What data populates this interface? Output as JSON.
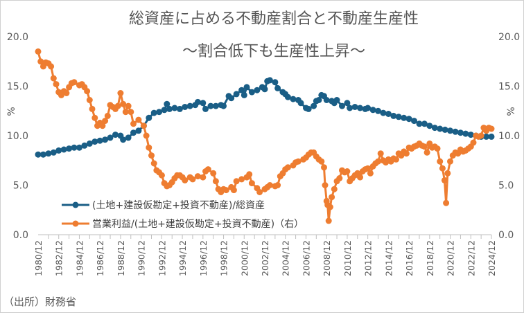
{
  "chart_data": {
    "type": "line",
    "title": "総資産に占める不動産割合と不動産生産性",
    "subtitle": "～割合低下も生産性上昇～",
    "ylabel_left": "%",
    "ylabel_right": "%",
    "ylim": [
      0,
      20
    ],
    "y2lim": [
      0,
      20
    ],
    "yticks": [
      "0.0",
      "5.0",
      "10.0",
      "15.0",
      "20.0"
    ],
    "xticks": [
      "1980/12",
      "1982/12",
      "1984/12",
      "1986/12",
      "1988/12",
      "1990/12",
      "1992/12",
      "1994/12",
      "1996/12",
      "1998/12",
      "2000/12",
      "2002/12",
      "2004/12",
      "2006/12",
      "2008/12",
      "2010/12",
      "2012/12",
      "2014/12",
      "2016/12",
      "2018/12",
      "2020/12",
      "2022/12",
      "2024/12"
    ],
    "x_start": 1980.75,
    "x_end": 2024.75,
    "legend_position": "center-left",
    "source": "（出所）財務省",
    "series": [
      {
        "name": "(土地+建設仮勘定+投資不動産)/総資産",
        "color": "#1a5e86",
        "axis": "left",
        "points": [
          [
            1980.75,
            8.1
          ],
          [
            1981.25,
            8.1
          ],
          [
            1981.75,
            8.2
          ],
          [
            1982.25,
            8.3
          ],
          [
            1982.75,
            8.5
          ],
          [
            1983.25,
            8.6
          ],
          [
            1983.75,
            8.7
          ],
          [
            1984.25,
            8.8
          ],
          [
            1984.75,
            8.8
          ],
          [
            1985.25,
            9.0
          ],
          [
            1985.75,
            9.2
          ],
          [
            1986.25,
            9.4
          ],
          [
            1986.75,
            9.5
          ],
          [
            1987.25,
            9.6
          ],
          [
            1987.75,
            9.8
          ],
          [
            1988.25,
            10.1
          ],
          [
            1988.75,
            10.0
          ],
          [
            1989.0,
            9.6
          ],
          [
            1989.5,
            9.8
          ],
          [
            1990.0,
            10.3
          ],
          [
            1990.5,
            10.5
          ],
          [
            1991.0,
            11.0
          ],
          [
            1991.5,
            11.8
          ],
          [
            1992.0,
            12.3
          ],
          [
            1992.5,
            12.4
          ],
          [
            1993.0,
            12.6
          ],
          [
            1993.25,
            13.2
          ],
          [
            1993.5,
            12.7
          ],
          [
            1994.0,
            12.8
          ],
          [
            1994.5,
            12.7
          ],
          [
            1995.0,
            12.9
          ],
          [
            1995.5,
            13.0
          ],
          [
            1996.0,
            13.1
          ],
          [
            1996.25,
            13.4
          ],
          [
            1996.75,
            13.3
          ],
          [
            1997.0,
            12.7
          ],
          [
            1997.5,
            13.0
          ],
          [
            1998.0,
            13.0
          ],
          [
            1998.5,
            13.1
          ],
          [
            1998.75,
            13.0
          ],
          [
            1999.25,
            14.0
          ],
          [
            1999.5,
            13.8
          ],
          [
            2000.0,
            14.2
          ],
          [
            2000.5,
            14.6
          ],
          [
            2000.75,
            14.1
          ],
          [
            2001.0,
            14.9
          ],
          [
            2001.5,
            14.4
          ],
          [
            2002.0,
            14.6
          ],
          [
            2002.5,
            14.9
          ],
          [
            2002.75,
            14.7
          ],
          [
            2003.0,
            15.5
          ],
          [
            2003.25,
            15.6
          ],
          [
            2003.75,
            15.4
          ],
          [
            2004.0,
            14.8
          ],
          [
            2004.5,
            14.4
          ],
          [
            2004.75,
            14.2
          ],
          [
            2005.0,
            13.9
          ],
          [
            2005.5,
            13.7
          ],
          [
            2006.0,
            13.6
          ],
          [
            2006.25,
            13.3
          ],
          [
            2006.75,
            12.8
          ],
          [
            2007.0,
            12.7
          ],
          [
            2007.5,
            13.0
          ],
          [
            2007.75,
            13.5
          ],
          [
            2008.0,
            13.6
          ],
          [
            2008.25,
            14.1
          ],
          [
            2008.5,
            14.0
          ],
          [
            2008.75,
            13.6
          ],
          [
            2009.25,
            13.5
          ],
          [
            2009.5,
            13.3
          ],
          [
            2009.75,
            13.6
          ],
          [
            2010.25,
            13.0
          ],
          [
            2010.75,
            13.3
          ],
          [
            2011.0,
            12.8
          ],
          [
            2011.5,
            12.9
          ],
          [
            2012.0,
            12.8
          ],
          [
            2012.5,
            12.7
          ],
          [
            2012.75,
            12.8
          ],
          [
            2013.25,
            12.6
          ],
          [
            2013.75,
            12.5
          ],
          [
            2014.25,
            12.3
          ],
          [
            2014.75,
            12.2
          ],
          [
            2015.25,
            12.0
          ],
          [
            2015.75,
            11.9
          ],
          [
            2016.25,
            11.8
          ],
          [
            2016.75,
            11.7
          ],
          [
            2017.25,
            11.5
          ],
          [
            2017.75,
            11.2
          ],
          [
            2018.25,
            11.2
          ],
          [
            2018.75,
            11.0
          ],
          [
            2019.25,
            10.8
          ],
          [
            2019.75,
            10.7
          ],
          [
            2020.25,
            10.6
          ],
          [
            2020.75,
            10.5
          ],
          [
            2021.25,
            10.4
          ],
          [
            2021.75,
            10.3
          ],
          [
            2022.25,
            10.2
          ],
          [
            2022.75,
            10.1
          ],
          [
            2023.25,
            10.0
          ],
          [
            2023.75,
            9.9
          ],
          [
            2024.25,
            9.9
          ],
          [
            2024.75,
            9.9
          ]
        ]
      },
      {
        "name": "営業利益/(土地+建設仮勘定+投資不動産)（右）",
        "color": "#ee7d31",
        "axis": "right",
        "points": [
          [
            1980.75,
            18.5
          ],
          [
            1981.0,
            17.5
          ],
          [
            1981.25,
            17.0
          ],
          [
            1981.5,
            17.4
          ],
          [
            1981.75,
            17.3
          ],
          [
            1982.0,
            17.0
          ],
          [
            1982.25,
            15.8
          ],
          [
            1982.5,
            15.2
          ],
          [
            1982.75,
            14.4
          ],
          [
            1983.0,
            14.1
          ],
          [
            1983.25,
            14.5
          ],
          [
            1983.5,
            14.3
          ],
          [
            1983.75,
            14.9
          ],
          [
            1984.0,
            15.3
          ],
          [
            1984.25,
            15.4
          ],
          [
            1984.75,
            15.1
          ],
          [
            1985.0,
            15.2
          ],
          [
            1985.25,
            14.9
          ],
          [
            1985.5,
            14.5
          ],
          [
            1985.75,
            13.6
          ],
          [
            1986.0,
            12.7
          ],
          [
            1986.25,
            11.8
          ],
          [
            1986.5,
            11.0
          ],
          [
            1986.75,
            11.3
          ],
          [
            1987.0,
            11.0
          ],
          [
            1987.25,
            11.5
          ],
          [
            1987.5,
            12.0
          ],
          [
            1987.75,
            13.1
          ],
          [
            1988.0,
            12.9
          ],
          [
            1988.25,
            12.7
          ],
          [
            1988.5,
            13.0
          ],
          [
            1988.75,
            14.3
          ],
          [
            1989.0,
            13.2
          ],
          [
            1989.25,
            12.4
          ],
          [
            1989.5,
            13.0
          ],
          [
            1989.75,
            12.4
          ],
          [
            1990.0,
            11.2
          ],
          [
            1990.5,
            11.6
          ],
          [
            1991.0,
            11.0
          ],
          [
            1991.25,
            10.0
          ],
          [
            1991.5,
            8.8
          ],
          [
            1991.75,
            8.0
          ],
          [
            1992.0,
            7.2
          ],
          [
            1992.25,
            6.5
          ],
          [
            1992.5,
            6.3
          ],
          [
            1992.75,
            6.0
          ],
          [
            1993.0,
            5.2
          ],
          [
            1993.25,
            4.9
          ],
          [
            1993.5,
            5.0
          ],
          [
            1993.75,
            5.3
          ],
          [
            1994.0,
            5.7
          ],
          [
            1994.25,
            6.0
          ],
          [
            1994.5,
            6.0
          ],
          [
            1994.75,
            5.8
          ],
          [
            1995.0,
            5.5
          ],
          [
            1995.5,
            5.8
          ],
          [
            1995.75,
            5.6
          ],
          [
            1996.25,
            5.9
          ],
          [
            1996.75,
            5.8
          ],
          [
            1997.0,
            6.4
          ],
          [
            1997.25,
            6.6
          ],
          [
            1997.75,
            6.2
          ],
          [
            1998.0,
            5.4
          ],
          [
            1998.25,
            4.6
          ],
          [
            1998.5,
            4.3
          ],
          [
            1998.75,
            4.6
          ],
          [
            1999.0,
            4.5
          ],
          [
            1999.5,
            4.8
          ],
          [
            1999.75,
            4.5
          ],
          [
            2000.0,
            5.4
          ],
          [
            2000.5,
            5.6
          ],
          [
            2001.0,
            5.8
          ],
          [
            2001.25,
            6.1
          ],
          [
            2001.5,
            5.2
          ],
          [
            2002.0,
            4.7
          ],
          [
            2002.25,
            4.3
          ],
          [
            2002.75,
            4.6
          ],
          [
            2003.0,
            4.8
          ],
          [
            2003.25,
            5.0
          ],
          [
            2003.75,
            4.9
          ],
          [
            2004.0,
            5.0
          ],
          [
            2004.25,
            5.9
          ],
          [
            2004.5,
            6.2
          ],
          [
            2004.75,
            6.6
          ],
          [
            2005.0,
            6.8
          ],
          [
            2005.5,
            7.0
          ],
          [
            2005.75,
            7.3
          ],
          [
            2006.0,
            7.4
          ],
          [
            2006.5,
            7.6
          ],
          [
            2006.75,
            7.8
          ],
          [
            2007.0,
            8.1
          ],
          [
            2007.25,
            8.3
          ],
          [
            2007.5,
            8.3
          ],
          [
            2007.75,
            7.9
          ],
          [
            2008.0,
            7.6
          ],
          [
            2008.25,
            7.4
          ],
          [
            2008.5,
            6.8
          ],
          [
            2008.6,
            5.0
          ],
          [
            2008.75,
            3.4
          ],
          [
            2008.85,
            3.0
          ],
          [
            2008.95,
            1.4
          ],
          [
            2009.1,
            2.8
          ],
          [
            2009.25,
            3.8
          ],
          [
            2009.5,
            4.6
          ],
          [
            2009.75,
            5.4
          ],
          [
            2010.0,
            5.7
          ],
          [
            2010.25,
            6.5
          ],
          [
            2010.5,
            6.3
          ],
          [
            2010.75,
            6.4
          ],
          [
            2011.0,
            5.4
          ],
          [
            2011.25,
            5.7
          ],
          [
            2011.5,
            6.0
          ],
          [
            2011.75,
            6.2
          ],
          [
            2012.0,
            5.8
          ],
          [
            2012.25,
            6.4
          ],
          [
            2012.5,
            6.6
          ],
          [
            2012.75,
            6.7
          ],
          [
            2013.0,
            6.2
          ],
          [
            2013.25,
            6.9
          ],
          [
            2013.5,
            7.2
          ],
          [
            2013.75,
            7.4
          ],
          [
            2014.0,
            8.2
          ],
          [
            2014.25,
            7.5
          ],
          [
            2014.5,
            7.3
          ],
          [
            2014.75,
            7.6
          ],
          [
            2015.0,
            7.4
          ],
          [
            2015.25,
            7.7
          ],
          [
            2015.5,
            7.6
          ],
          [
            2015.75,
            8.2
          ],
          [
            2016.0,
            8.0
          ],
          [
            2016.25,
            8.4
          ],
          [
            2016.5,
            8.2
          ],
          [
            2016.75,
            8.8
          ],
          [
            2017.0,
            8.7
          ],
          [
            2017.25,
            8.9
          ],
          [
            2017.5,
            9.0
          ],
          [
            2017.75,
            9.2
          ],
          [
            2018.0,
            9.0
          ],
          [
            2018.25,
            8.9
          ],
          [
            2018.5,
            8.3
          ],
          [
            2018.75,
            9.2
          ],
          [
            2019.0,
            8.8
          ],
          [
            2019.25,
            8.9
          ],
          [
            2019.5,
            8.7
          ],
          [
            2019.75,
            7.4
          ],
          [
            2020.0,
            6.7
          ],
          [
            2020.2,
            5.5
          ],
          [
            2020.35,
            3.2
          ],
          [
            2020.5,
            6.2
          ],
          [
            2020.75,
            7.4
          ],
          [
            2021.0,
            8.0
          ],
          [
            2021.25,
            8.3
          ],
          [
            2021.5,
            8.2
          ],
          [
            2021.75,
            8.6
          ],
          [
            2022.0,
            8.4
          ],
          [
            2022.25,
            8.5
          ],
          [
            2022.5,
            8.7
          ],
          [
            2022.75,
            8.9
          ],
          [
            2023.0,
            9.3
          ],
          [
            2023.25,
            10.0
          ],
          [
            2023.5,
            9.9
          ],
          [
            2023.75,
            10.0
          ],
          [
            2024.0,
            10.8
          ],
          [
            2024.25,
            10.5
          ],
          [
            2024.5,
            10.8
          ],
          [
            2024.75,
            10.7
          ]
        ]
      }
    ]
  }
}
